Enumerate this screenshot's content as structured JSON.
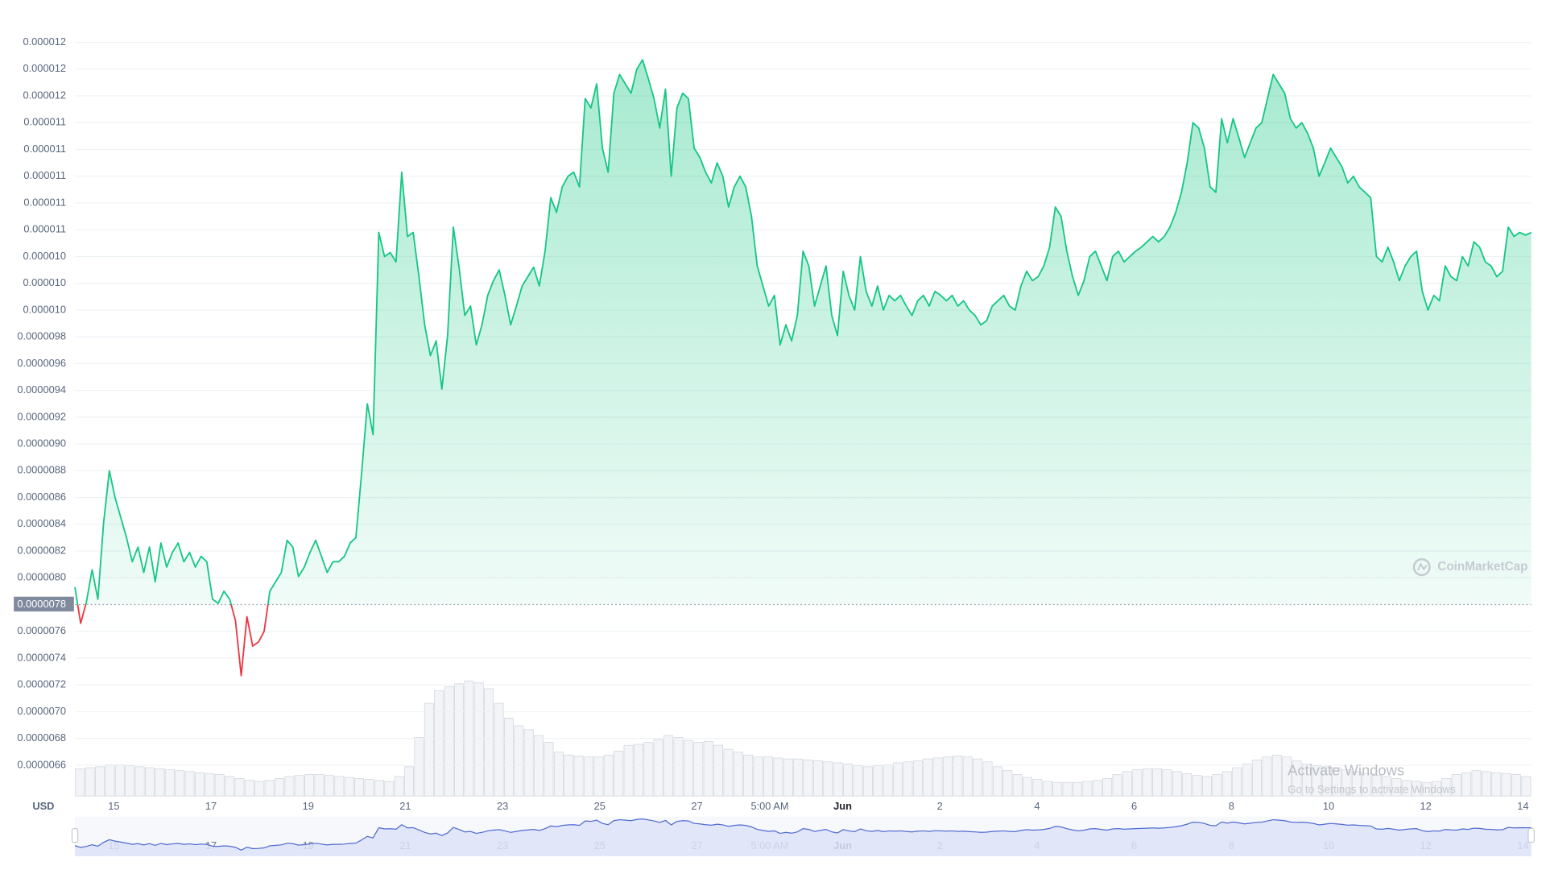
{
  "chart_data": {
    "type": "line",
    "currency": "USD",
    "baseline": 7.8e-06,
    "watermark": "CoinMarketCap",
    "os_overlay": {
      "title": "Activate Windows",
      "subtitle": "Go to Settings to activate Windows"
    },
    "ylim": [
      6.37e-06,
      1.22e-05
    ],
    "yticks": [
      6.6e-06,
      6.8e-06,
      {
        "value": 7e-06,
        "label": "0.0000070"
      },
      7.2e-06,
      7.4e-06,
      7.6e-06,
      {
        "value": 8e-06,
        "label": "0.0000080"
      },
      8.2e-06,
      8.4e-06,
      8.6e-06,
      8.8e-06,
      {
        "value": 9e-06,
        "label": "0.0000090"
      },
      9.2e-06,
      9.4e-06,
      9.6e-06,
      9.8e-06,
      {
        "value": 1e-05,
        "label": "0.000010"
      },
      {
        "value": 1.02e-05,
        "label": "0.000010"
      },
      {
        "value": 1.04e-05,
        "label": "0.000010"
      },
      {
        "value": 1.06e-05,
        "label": "0.000011"
      },
      {
        "value": 1.08e-05,
        "label": "0.000011"
      },
      {
        "value": 1.1e-05,
        "label": "0.000011"
      },
      {
        "value": 1.12e-05,
        "label": "0.000011"
      },
      {
        "value": 1.14e-05,
        "label": "0.000011"
      },
      {
        "value": 1.16e-05,
        "label": "0.000012"
      },
      {
        "value": 1.18e-05,
        "label": "0.000012"
      },
      {
        "value": 1.2e-05,
        "label": "0.000012"
      }
    ],
    "xlim": [
      14.2,
      44.17
    ],
    "xticks": [
      15,
      17,
      19,
      21,
      23,
      25,
      27,
      {
        "value": 28.5,
        "label": "5:00 AM"
      },
      {
        "value": 30,
        "label": "Jun"
      },
      {
        "value": 32,
        "label": "2"
      },
      {
        "value": 34,
        "label": "4"
      },
      {
        "value": 36,
        "label": "6"
      },
      {
        "value": 38,
        "label": "8"
      },
      {
        "value": 40,
        "label": "10"
      },
      {
        "value": 42,
        "label": "12"
      },
      {
        "value": 44,
        "label": "14"
      }
    ],
    "grid": true,
    "up_color": "#16c784",
    "down_color": "#ea3943",
    "series": [
      {
        "values": [
          7.93e-06,
          7.66e-06,
          7.82e-06,
          8.06e-06,
          7.84e-06,
          8.41e-06,
          8.8e-06,
          8.6e-06,
          8.45e-06,
          8.3e-06,
          8.12e-06,
          8.23e-06,
          8.04e-06,
          8.23e-06,
          7.97e-06,
          8.26e-06,
          8.08e-06,
          8.19e-06,
          8.26e-06,
          8.12e-06,
          8.19e-06,
          8.08e-06,
          8.16e-06,
          8.12e-06,
          7.84e-06,
          7.81e-06,
          7.9e-06,
          7.84e-06,
          7.68e-06,
          7.27e-06,
          7.71e-06,
          7.49e-06,
          7.52e-06,
          7.6e-06,
          7.9e-06,
          7.97e-06,
          8.04e-06,
          8.28e-06,
          8.23e-06,
          8.01e-06,
          8.08e-06,
          8.19e-06,
          8.28e-06,
          8.16e-06,
          8.04e-06,
          8.12e-06,
          8.12e-06,
          8.16e-06,
          8.26e-06,
          8.3e-06,
          8.78e-06,
          9.3e-06,
          9.07e-06,
          1.058e-05,
          1.04e-05,
          1.043e-05,
          1.036e-05,
          1.103e-05,
          1.055e-05,
          1.058e-05,
          1.025e-05,
          9.89e-06,
          9.66e-06,
          9.77e-06,
          9.41e-06,
          9.81e-06,
          1.062e-05,
          1.032e-05,
          9.96e-06,
          1.003e-05,
          9.74e-06,
          9.89e-06,
          1.011e-05,
          1.022e-05,
          1.03e-05,
          1.011e-05,
          9.89e-06,
          1.003e-05,
          1.018e-05,
          1.025e-05,
          1.032e-05,
          1.018e-05,
          1.044e-05,
          1.084e-05,
          1.073e-05,
          1.092e-05,
          1.1e-05,
          1.103e-05,
          1.092e-05,
          1.158e-05,
          1.151e-05,
          1.169e-05,
          1.121e-05,
          1.103e-05,
          1.162e-05,
          1.176e-05,
          1.169e-05,
          1.162e-05,
          1.18e-05,
          1.187e-05,
          1.173e-05,
          1.158e-05,
          1.136e-05,
          1.165e-05,
          1.1e-05,
          1.151e-05,
          1.162e-05,
          1.158e-05,
          1.121e-05,
          1.114e-05,
          1.103e-05,
          1.095e-05,
          1.11e-05,
          1.1e-05,
          1.077e-05,
          1.092e-05,
          1.1e-05,
          1.092e-05,
          1.07e-05,
          1.033e-05,
          1.018e-05,
          1.003e-05,
          1.011e-05,
          9.74e-06,
          9.89e-06,
          9.77e-06,
          9.96e-06,
          1.044e-05,
          1.033e-05,
          1.003e-05,
          1.018e-05,
          1.033e-05,
          9.96e-06,
          9.81e-06,
          1.029e-05,
          1.011e-05,
          1e-05,
          1.04e-05,
          1.014e-05,
          1.003e-05,
          1.018e-05,
          1e-05,
          1.011e-05,
          1.007e-05,
          1.011e-05,
          1.003e-05,
          9.96e-06,
          1.007e-05,
          1.011e-05,
          1.003e-05,
          1.014e-05,
          1.011e-05,
          1.007e-05,
          1.011e-05,
          1.003e-05,
          1.007e-05,
          1e-05,
          9.96e-06,
          9.89e-06,
          9.92e-06,
          1.003e-05,
          1.007e-05,
          1.011e-05,
          1.003e-05,
          1e-05,
          1.018e-05,
          1.029e-05,
          1.022e-05,
          1.025e-05,
          1.033e-05,
          1.047e-05,
          1.077e-05,
          1.07e-05,
          1.044e-05,
          1.025e-05,
          1.011e-05,
          1.022e-05,
          1.04e-05,
          1.044e-05,
          1.033e-05,
          1.022e-05,
          1.04e-05,
          1.044e-05,
          1.036e-05,
          1.04e-05,
          1.044e-05,
          1.047e-05,
          1.051e-05,
          1.055e-05,
          1.051e-05,
          1.055e-05,
          1.062e-05,
          1.073e-05,
          1.088e-05,
          1.11e-05,
          1.14e-05,
          1.136e-05,
          1.121e-05,
          1.092e-05,
          1.088e-05,
          1.143e-05,
          1.125e-05,
          1.143e-05,
          1.129e-05,
          1.114e-05,
          1.125e-05,
          1.136e-05,
          1.14e-05,
          1.158e-05,
          1.176e-05,
          1.169e-05,
          1.162e-05,
          1.143e-05,
          1.136e-05,
          1.14e-05,
          1.132e-05,
          1.121e-05,
          1.1e-05,
          1.11e-05,
          1.121e-05,
          1.114e-05,
          1.107e-05,
          1.095e-05,
          1.1e-05,
          1.092e-05,
          1.088e-05,
          1.084e-05,
          1.04e-05,
          1.036e-05,
          1.047e-05,
          1.036e-05,
          1.022e-05,
          1.033e-05,
          1.04e-05,
          1.044e-05,
          1.014e-05,
          1e-05,
          1.011e-05,
          1.007e-05,
          1.033e-05,
          1.025e-05,
          1.022e-05,
          1.04e-05,
          1.033e-05,
          1.051e-05,
          1.047e-05,
          1.036e-05,
          1.033e-05,
          1.025e-05,
          1.029e-05,
          1.062e-05,
          1.055e-05,
          1.058e-05,
          1.056e-05,
          1.058e-05
        ]
      }
    ],
    "volume": {
      "y2lim": [
        0,
        800
      ],
      "values": [
        28,
        29,
        30,
        32,
        32,
        31,
        30,
        29,
        28,
        27,
        26,
        25,
        24,
        23,
        22,
        20,
        18,
        16,
        15,
        16,
        18,
        20,
        21,
        22,
        22,
        21,
        20,
        19,
        18,
        17,
        16,
        15,
        20,
        30,
        60,
        95,
        108,
        112,
        115,
        118,
        116,
        110,
        95,
        80,
        72,
        68,
        62,
        55,
        45,
        42,
        41,
        40,
        40,
        42,
        46,
        52,
        53,
        55,
        58,
        62,
        60,
        57,
        55,
        56,
        52,
        48,
        45,
        42,
        40,
        40,
        39,
        38,
        38,
        37,
        36,
        35,
        34,
        33,
        31,
        30,
        31,
        32,
        34,
        35,
        36,
        38,
        39,
        40,
        41,
        40,
        38,
        35,
        30,
        26,
        22,
        19,
        17,
        15,
        14,
        14,
        14,
        15,
        16,
        18,
        22,
        25,
        27,
        28,
        28,
        27,
        25,
        23,
        21,
        20,
        22,
        25,
        29,
        33,
        37,
        40,
        42,
        40,
        36,
        33,
        31,
        30,
        29,
        27,
        25,
        23,
        21,
        20,
        18,
        16,
        15,
        14,
        15,
        18,
        22,
        24,
        26,
        25,
        24,
        23,
        22,
        20
      ]
    }
  }
}
